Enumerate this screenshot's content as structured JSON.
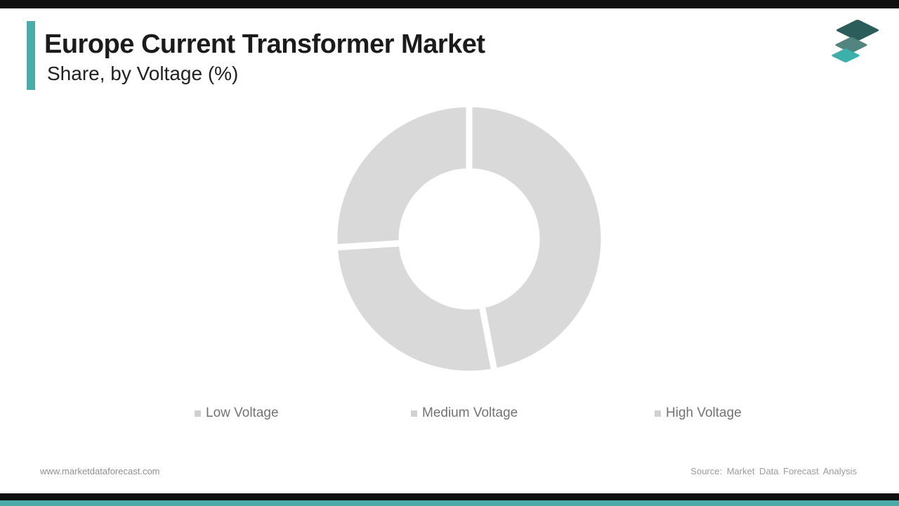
{
  "header": {
    "title": "Europe Current Transformer Market",
    "subtitle": "Share, by Voltage (%)"
  },
  "branding": {
    "accent_color": "#4aaba8",
    "top_bar_color": "#101010",
    "bottom_bar_color": "#101010",
    "bottom_accent_color": "#4aaba8",
    "logo_icon": "stacked-layers-icon",
    "logo_layer_colors": [
      "#2b5d5a",
      "#51837f",
      "#3cb0aa"
    ]
  },
  "chart_data": {
    "type": "pie",
    "variant": "donut",
    "title": "Europe Current Transformer Market Share, by Voltage (%)",
    "categories": [
      "Low Voltage",
      "Medium Voltage",
      "High Voltage"
    ],
    "values": [
      47,
      27,
      26
    ],
    "unit": "%",
    "start_angle": "top, clockwise",
    "slice_color": "#d9d9d9",
    "gap_color": "#ffffff",
    "gap_width": 9,
    "outer_radius": 192,
    "inner_radius": 96,
    "data_labels": "none",
    "legend_position": "bottom"
  },
  "legend": {
    "marker_color": "#d0d0d0",
    "text_color": "#737373"
  },
  "footer": {
    "website": "www.marketdataforecast.com",
    "source": "Source: Market Data Forecast Analysis"
  }
}
